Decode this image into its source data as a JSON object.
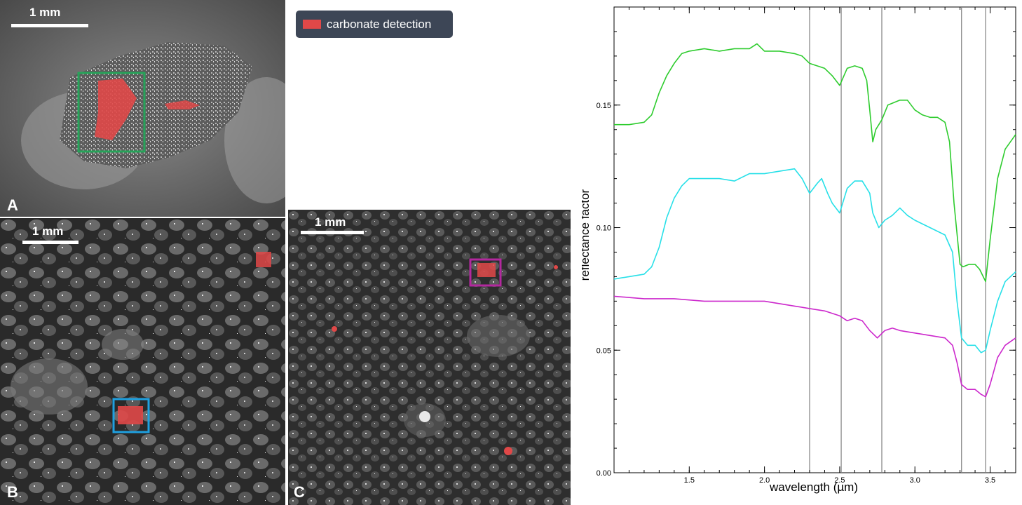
{
  "panels": {
    "a": {
      "letter": "A",
      "scalebar_label": "1 mm"
    },
    "b": {
      "letter": "B",
      "scalebar_label": "1 mm"
    },
    "c": {
      "letter": "C",
      "scalebar_label": "1 mm"
    }
  },
  "legend": {
    "label": "carbonate detection",
    "swatch_color": "#e04848"
  },
  "colors": {
    "detection": "#e04848",
    "box_a": "#27a35a",
    "box_b": "#1fa0e0",
    "box_c": "#b3289e"
  },
  "chart_data": {
    "type": "line",
    "xlabel": "wavelength (µm)",
    "ylabel": "reflectance factor",
    "xlim": [
      1.0,
      3.67
    ],
    "ylim": [
      0.0,
      0.19
    ],
    "xticks": [
      1.5,
      2.0,
      2.5,
      3.0,
      3.5
    ],
    "xtick_labels": [
      "1.5",
      "2.0",
      "2.5",
      "3.0",
      "3.5"
    ],
    "yticks": [
      0.0,
      0.05,
      0.1,
      0.15
    ],
    "ytick_labels": [
      "0.00",
      "0.05",
      "0.10",
      "0.15"
    ],
    "vlines": [
      2.3,
      2.51,
      2.78,
      3.31,
      3.47
    ],
    "grid": false,
    "series": [
      {
        "color": "#2ecc2e",
        "x": [
          1.0,
          1.1,
          1.2,
          1.25,
          1.3,
          1.35,
          1.4,
          1.45,
          1.5,
          1.6,
          1.7,
          1.8,
          1.9,
          1.95,
          2.0,
          2.1,
          2.2,
          2.25,
          2.3,
          2.35,
          2.4,
          2.45,
          2.5,
          2.55,
          2.6,
          2.65,
          2.68,
          2.7,
          2.72,
          2.74,
          2.78,
          2.82,
          2.9,
          2.95,
          3.0,
          3.05,
          3.1,
          3.15,
          3.2,
          3.23,
          3.26,
          3.3,
          3.32,
          3.36,
          3.4,
          3.43,
          3.47,
          3.5,
          3.55,
          3.6,
          3.67
        ],
        "y": [
          0.142,
          0.142,
          0.143,
          0.146,
          0.155,
          0.162,
          0.167,
          0.171,
          0.172,
          0.173,
          0.172,
          0.173,
          0.173,
          0.175,
          0.172,
          0.172,
          0.171,
          0.17,
          0.167,
          0.166,
          0.165,
          0.162,
          0.158,
          0.165,
          0.166,
          0.165,
          0.16,
          0.148,
          0.135,
          0.14,
          0.144,
          0.15,
          0.152,
          0.152,
          0.148,
          0.146,
          0.145,
          0.145,
          0.143,
          0.135,
          0.11,
          0.085,
          0.084,
          0.085,
          0.085,
          0.083,
          0.078,
          0.095,
          0.12,
          0.132,
          0.138
        ]
      },
      {
        "color": "#28e0e8",
        "x": [
          1.0,
          1.1,
          1.2,
          1.25,
          1.3,
          1.35,
          1.4,
          1.45,
          1.5,
          1.6,
          1.7,
          1.8,
          1.9,
          2.0,
          2.1,
          2.2,
          2.25,
          2.3,
          2.35,
          2.38,
          2.42,
          2.45,
          2.5,
          2.55,
          2.6,
          2.65,
          2.7,
          2.72,
          2.76,
          2.8,
          2.85,
          2.9,
          2.95,
          3.0,
          3.1,
          3.2,
          3.25,
          3.28,
          3.31,
          3.35,
          3.4,
          3.44,
          3.47,
          3.5,
          3.55,
          3.6,
          3.67
        ],
        "y": [
          0.079,
          0.08,
          0.081,
          0.084,
          0.092,
          0.104,
          0.112,
          0.117,
          0.12,
          0.12,
          0.12,
          0.119,
          0.122,
          0.122,
          0.123,
          0.124,
          0.12,
          0.114,
          0.118,
          0.12,
          0.114,
          0.11,
          0.106,
          0.116,
          0.119,
          0.119,
          0.114,
          0.106,
          0.1,
          0.103,
          0.105,
          0.108,
          0.105,
          0.103,
          0.1,
          0.097,
          0.09,
          0.07,
          0.055,
          0.052,
          0.052,
          0.049,
          0.05,
          0.058,
          0.07,
          0.078,
          0.082
        ]
      },
      {
        "color": "#cc28cc",
        "x": [
          1.0,
          1.2,
          1.4,
          1.6,
          1.8,
          2.0,
          2.1,
          2.2,
          2.3,
          2.4,
          2.5,
          2.55,
          2.6,
          2.65,
          2.7,
          2.75,
          2.8,
          2.85,
          2.9,
          3.0,
          3.1,
          3.2,
          3.25,
          3.28,
          3.31,
          3.35,
          3.4,
          3.44,
          3.47,
          3.5,
          3.55,
          3.6,
          3.67
        ],
        "y": [
          0.072,
          0.071,
          0.071,
          0.07,
          0.07,
          0.07,
          0.069,
          0.068,
          0.067,
          0.066,
          0.064,
          0.062,
          0.063,
          0.062,
          0.058,
          0.055,
          0.058,
          0.059,
          0.058,
          0.057,
          0.056,
          0.055,
          0.052,
          0.045,
          0.036,
          0.034,
          0.034,
          0.032,
          0.031,
          0.036,
          0.047,
          0.052,
          0.055
        ]
      }
    ]
  }
}
